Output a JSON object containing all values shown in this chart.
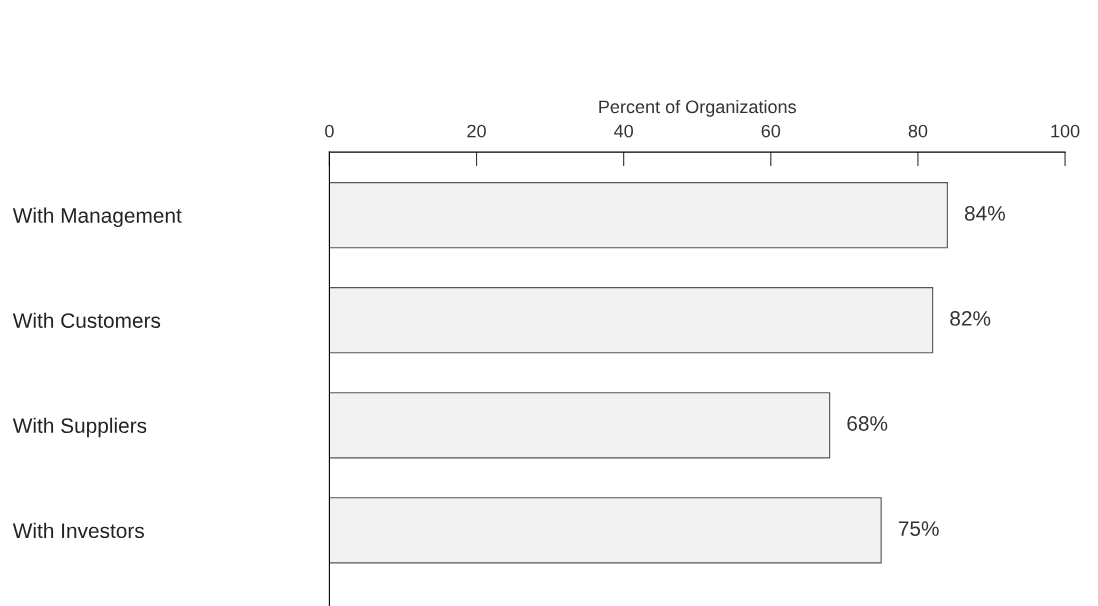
{
  "chart_data": {
    "type": "bar",
    "orientation": "horizontal",
    "xlabel": "Percent of Organizations",
    "categories": [
      "With Management",
      "With Customers",
      "With Suppliers",
      "With Investors"
    ],
    "values": [
      84,
      82,
      68,
      75
    ],
    "value_labels": [
      "84%",
      "82%",
      "68%",
      "75%"
    ],
    "color": "#f2f2f2",
    "xlim": [
      0,
      100
    ],
    "xticks": [
      0,
      20,
      40,
      60,
      80,
      100
    ],
    "grid": false,
    "legend": false
  }
}
